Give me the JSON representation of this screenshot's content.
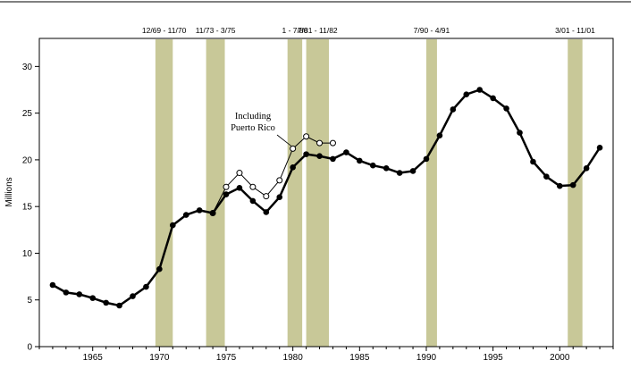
{
  "chart_data": {
    "type": "line",
    "title": "",
    "xlabel": "",
    "ylabel": "Millions",
    "xlim": [
      1961,
      2004
    ],
    "ylim": [
      0,
      33
    ],
    "x_ticks": [
      1965,
      1970,
      1975,
      1980,
      1985,
      1990,
      1995,
      2000
    ],
    "y_ticks": [
      0,
      5,
      10,
      15,
      20,
      25,
      30
    ],
    "grid": false,
    "colors": {
      "recession": "#c8c898",
      "main_line": "#000000",
      "pr_fill": "#ffffff"
    },
    "recessions": [
      {
        "label": "12/69 - 11/70",
        "start": 1969.7,
        "end": 1971.0
      },
      {
        "label": "11/73 - 3/75",
        "start": 1973.5,
        "end": 1974.9
      },
      {
        "label": "1 - 7/80",
        "start": 1979.6,
        "end": 1980.7
      },
      {
        "label": "7/81 - 11/82",
        "start": 1981.0,
        "end": 1982.7
      },
      {
        "label": "7/90 - 4/91",
        "start": 1990.0,
        "end": 1990.8
      },
      {
        "label": "3/01 - 11/01",
        "start": 2000.6,
        "end": 2001.7
      }
    ],
    "series": [
      {
        "x": [
          1962,
          1963,
          1964,
          1965,
          1966,
          1967,
          1968,
          1969,
          1970,
          1971,
          1972,
          1973,
          1974,
          1975,
          1976,
          1977,
          1978,
          1979,
          1980,
          1981,
          1982,
          1983,
          1984,
          1985,
          1986,
          1987,
          1988,
          1989,
          1990,
          1991,
          1992,
          1993,
          1994,
          1995,
          1996,
          1997,
          1998,
          1999,
          2000,
          2001,
          2002,
          2003
        ],
        "values": [
          6.6,
          5.8,
          5.6,
          5.2,
          4.7,
          4.4,
          5.4,
          6.4,
          8.3,
          13.0,
          14.1,
          14.6,
          14.3,
          16.3,
          17.0,
          15.6,
          14.4,
          16.0,
          19.2,
          20.6,
          20.4,
          20.1,
          20.8,
          19.9,
          19.4,
          19.1,
          18.6,
          18.8,
          20.1,
          22.6,
          25.4,
          27.0,
          27.5,
          26.6,
          25.5,
          22.9,
          19.8,
          18.2,
          17.2,
          17.3,
          19.1,
          21.3
        ]
      },
      {
        "x": [
          1974,
          1975,
          1976,
          1977,
          1978,
          1979,
          1980,
          1981,
          1982,
          1983
        ],
        "values": [
          14.3,
          17.1,
          18.6,
          17.1,
          16.1,
          17.8,
          21.2,
          22.5,
          21.8,
          21.8
        ]
      }
    ],
    "annotations": [
      {
        "lines": [
          "Including",
          "Puerto Rico"
        ],
        "target_x": 1980,
        "target_y": 21.2
      }
    ]
  }
}
